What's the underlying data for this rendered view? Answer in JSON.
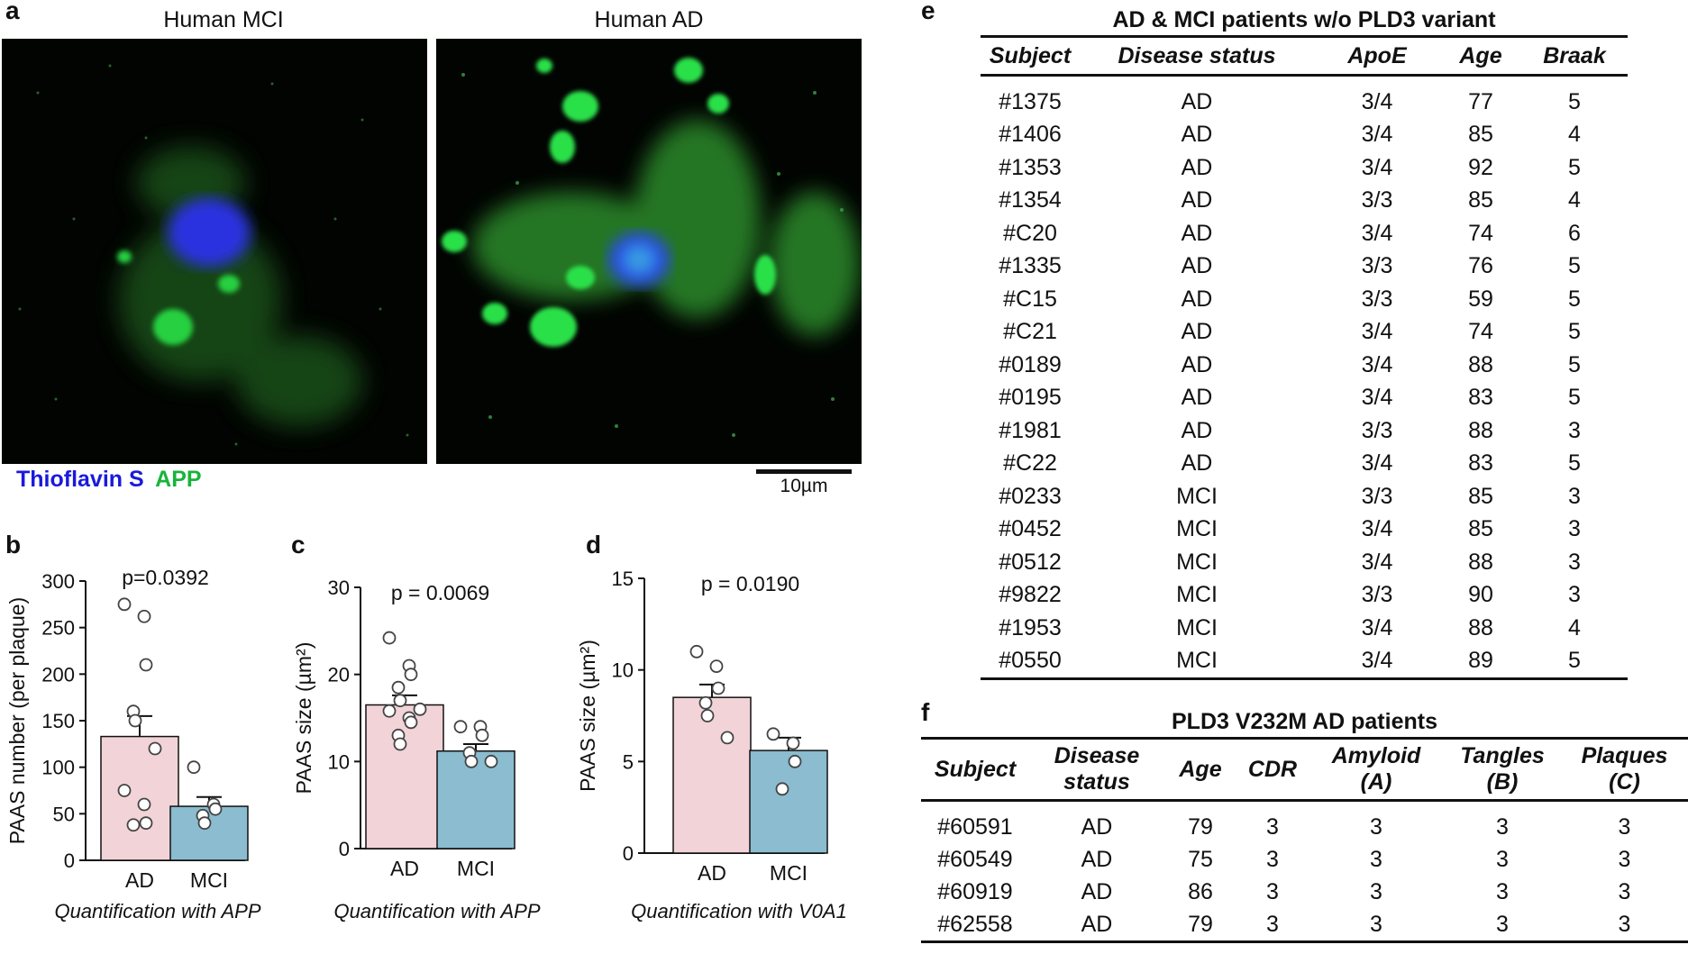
{
  "panel_a": {
    "letter": "a",
    "titles": [
      "Human MCI",
      "Human AD"
    ],
    "legend": {
      "thioflavin": "Thioflavin S",
      "app": "APP",
      "thioflavin_color": "#1a1adc",
      "app_color": "#18b43a"
    },
    "scale_label": "10µm"
  },
  "chart_data": [
    {
      "letter": "b",
      "type": "bar",
      "categories": [
        "AD",
        "MCI"
      ],
      "values": [
        133,
        58
      ],
      "sem": [
        22,
        10
      ],
      "points": [
        [
          275,
          262,
          210,
          160,
          150,
          120,
          75,
          60,
          40,
          38
        ],
        [
          100,
          60,
          55,
          48,
          40
        ]
      ],
      "ylabel": "PAAS number (per plaque)",
      "ylim": [
        0,
        300
      ],
      "yticks": [
        0,
        50,
        100,
        150,
        200,
        250,
        300
      ],
      "pvalue": "p=0.0392",
      "caption": "Quantification with APP",
      "colors": [
        "#f2d3d8",
        "#8bbccf"
      ]
    },
    {
      "letter": "c",
      "type": "bar",
      "categories": [
        "AD",
        "MCI"
      ],
      "values": [
        16.5,
        11.2
      ],
      "sem": [
        1.1,
        0.8
      ],
      "points": [
        [
          24.2,
          21,
          20,
          18.5,
          17,
          16,
          15.8,
          15,
          14.5,
          13,
          12
        ],
        [
          14,
          14,
          13,
          11,
          10,
          10
        ]
      ],
      "ylabel": "PAAS size (µm²)",
      "ylim": [
        0,
        30
      ],
      "yticks": [
        0,
        10,
        20,
        30
      ],
      "pvalue": "p = 0.0069",
      "caption": "Quantification with APP",
      "colors": [
        "#f2d3d8",
        "#8bbccf"
      ]
    },
    {
      "letter": "d",
      "type": "bar",
      "categories": [
        "AD",
        "MCI"
      ],
      "values": [
        8.5,
        5.6
      ],
      "sem": [
        0.7,
        0.7
      ],
      "points": [
        [
          11,
          10.2,
          9,
          8.2,
          7.5,
          6.3
        ],
        [
          6.5,
          6,
          5,
          3.5
        ]
      ],
      "ylabel": "PAAS size (µm²)",
      "ylim": [
        0,
        15
      ],
      "yticks": [
        0,
        5,
        10,
        15
      ],
      "pvalue": "p = 0.0190",
      "caption": "Quantification with V0A1",
      "colors": [
        "#f2d3d8",
        "#8bbccf"
      ]
    }
  ],
  "table_e": {
    "letter": "e",
    "title": "AD & MCI patients w/o PLD3 variant",
    "headers": [
      "Subject",
      "Disease status",
      "ApoE",
      "Age",
      "Braak"
    ],
    "rows": [
      [
        "#1375",
        "AD",
        "3/4",
        "77",
        "5"
      ],
      [
        "#1406",
        "AD",
        "3/4",
        "85",
        "4"
      ],
      [
        "#1353",
        "AD",
        "3/4",
        "92",
        "5"
      ],
      [
        "#1354",
        "AD",
        "3/3",
        "85",
        "4"
      ],
      [
        "#C20",
        "AD",
        "3/4",
        "74",
        "6"
      ],
      [
        "#1335",
        "AD",
        "3/3",
        "76",
        "5"
      ],
      [
        "#C15",
        "AD",
        "3/3",
        "59",
        "5"
      ],
      [
        "#C21",
        "AD",
        "3/4",
        "74",
        "5"
      ],
      [
        "#0189",
        "AD",
        "3/4",
        "88",
        "5"
      ],
      [
        "#0195",
        "AD",
        "3/4",
        "83",
        "5"
      ],
      [
        "#1981",
        "AD",
        "3/3",
        "88",
        "3"
      ],
      [
        "#C22",
        "AD",
        "3/4",
        "83",
        "5"
      ],
      [
        "#0233",
        "MCI",
        "3/3",
        "85",
        "3"
      ],
      [
        "#0452",
        "MCI",
        "3/4",
        "85",
        "3"
      ],
      [
        "#0512",
        "MCI",
        "3/4",
        "88",
        "3"
      ],
      [
        "#9822",
        "MCI",
        "3/3",
        "90",
        "3"
      ],
      [
        "#1953",
        "MCI",
        "3/4",
        "88",
        "4"
      ],
      [
        "#0550",
        "MCI",
        "3/4",
        "89",
        "5"
      ]
    ]
  },
  "table_f": {
    "letter": "f",
    "title": "PLD3 V232M AD patients",
    "headers": [
      "Subject",
      "Disease\nstatus",
      "Age",
      "CDR",
      "Amyloid\n(A)",
      "Tangles\n(B)",
      "Plaques\n(C)"
    ],
    "rows": [
      [
        "#60591",
        "AD",
        "79",
        "3",
        "3",
        "3",
        "3"
      ],
      [
        "#60549",
        "AD",
        "75",
        "3",
        "3",
        "3",
        "3"
      ],
      [
        "#60919",
        "AD",
        "86",
        "3",
        "3",
        "3",
        "3"
      ],
      [
        "#62558",
        "AD",
        "79",
        "3",
        "3",
        "3",
        "3"
      ]
    ]
  }
}
